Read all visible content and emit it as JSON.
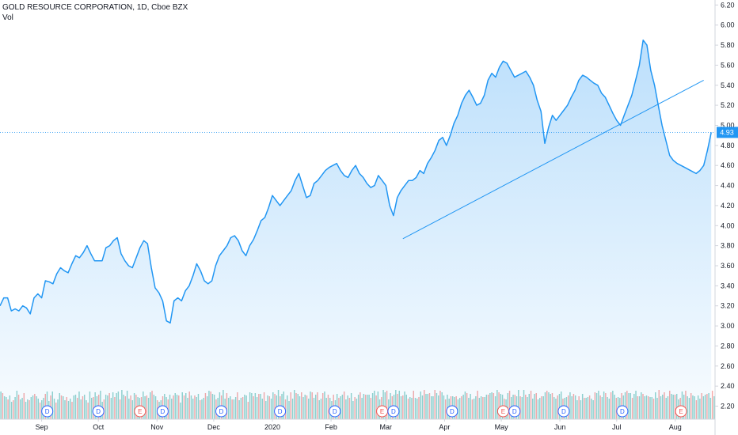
{
  "chart_data": {
    "type": "line",
    "title": "GOLD RESOURCE CORPORATION, 1D, Cboe BZX",
    "volume_label": "Vol",
    "last_price_label": "4.93",
    "y_ticks": [
      "2.20",
      "2.40",
      "2.60",
      "2.80",
      "3.00",
      "3.20",
      "3.40",
      "3.60",
      "3.80",
      "4.00",
      "4.20",
      "4.40",
      "4.60",
      "4.80",
      "5.00",
      "5.20",
      "5.40",
      "5.60",
      "5.80",
      "6.00",
      "6.20"
    ],
    "ylim": [
      2.07,
      6.25
    ],
    "x_ticks": [
      {
        "label": "Sep",
        "day": 22
      },
      {
        "label": "Oct",
        "day": 52
      },
      {
        "label": "Nov",
        "day": 83
      },
      {
        "label": "Dec",
        "day": 113
      },
      {
        "label": "2020",
        "day": 144
      },
      {
        "label": "Feb",
        "day": 175
      },
      {
        "label": "Mar",
        "day": 204
      },
      {
        "label": "Apr",
        "day": 235
      },
      {
        "label": "May",
        "day": 265
      },
      {
        "label": "Jun",
        "day": 296
      },
      {
        "label": "Jul",
        "day": 326
      },
      {
        "label": "Aug",
        "day": 357
      }
    ],
    "xlim": [
      0,
      378
    ],
    "price_points": [
      [
        0,
        3.2
      ],
      [
        2,
        3.28
      ],
      [
        4,
        3.28
      ],
      [
        6,
        3.15
      ],
      [
        8,
        3.17
      ],
      [
        10,
        3.15
      ],
      [
        12,
        3.2
      ],
      [
        14,
        3.18
      ],
      [
        16,
        3.12
      ],
      [
        18,
        3.28
      ],
      [
        20,
        3.32
      ],
      [
        22,
        3.28
      ],
      [
        24,
        3.45
      ],
      [
        26,
        3.44
      ],
      [
        28,
        3.42
      ],
      [
        30,
        3.52
      ],
      [
        32,
        3.58
      ],
      [
        34,
        3.55
      ],
      [
        36,
        3.53
      ],
      [
        38,
        3.62
      ],
      [
        40,
        3.7
      ],
      [
        42,
        3.68
      ],
      [
        44,
        3.73
      ],
      [
        46,
        3.8
      ],
      [
        48,
        3.72
      ],
      [
        50,
        3.65
      ],
      [
        52,
        3.65
      ],
      [
        54,
        3.65
      ],
      [
        56,
        3.78
      ],
      [
        58,
        3.8
      ],
      [
        60,
        3.85
      ],
      [
        62,
        3.88
      ],
      [
        64,
        3.72
      ],
      [
        66,
        3.65
      ],
      [
        68,
        3.6
      ],
      [
        70,
        3.58
      ],
      [
        72,
        3.68
      ],
      [
        74,
        3.78
      ],
      [
        76,
        3.85
      ],
      [
        78,
        3.82
      ],
      [
        80,
        3.58
      ],
      [
        82,
        3.38
      ],
      [
        84,
        3.33
      ],
      [
        86,
        3.25
      ],
      [
        88,
        3.05
      ],
      [
        90,
        3.03
      ],
      [
        92,
        3.25
      ],
      [
        94,
        3.28
      ],
      [
        96,
        3.25
      ],
      [
        98,
        3.35
      ],
      [
        100,
        3.4
      ],
      [
        102,
        3.5
      ],
      [
        104,
        3.62
      ],
      [
        106,
        3.55
      ],
      [
        108,
        3.45
      ],
      [
        110,
        3.42
      ],
      [
        112,
        3.45
      ],
      [
        114,
        3.6
      ],
      [
        116,
        3.7
      ],
      [
        118,
        3.75
      ],
      [
        120,
        3.8
      ],
      [
        122,
        3.88
      ],
      [
        124,
        3.9
      ],
      [
        126,
        3.85
      ],
      [
        128,
        3.75
      ],
      [
        130,
        3.7
      ],
      [
        132,
        3.8
      ],
      [
        134,
        3.86
      ],
      [
        136,
        3.95
      ],
      [
        138,
        4.05
      ],
      [
        140,
        4.08
      ],
      [
        142,
        4.18
      ],
      [
        144,
        4.3
      ],
      [
        146,
        4.25
      ],
      [
        148,
        4.2
      ],
      [
        150,
        4.25
      ],
      [
        152,
        4.3
      ],
      [
        154,
        4.35
      ],
      [
        156,
        4.45
      ],
      [
        158,
        4.52
      ],
      [
        160,
        4.4
      ],
      [
        162,
        4.28
      ],
      [
        164,
        4.3
      ],
      [
        166,
        4.42
      ],
      [
        168,
        4.45
      ],
      [
        170,
        4.5
      ],
      [
        172,
        4.55
      ],
      [
        174,
        4.58
      ],
      [
        176,
        4.6
      ],
      [
        178,
        4.62
      ],
      [
        180,
        4.55
      ],
      [
        182,
        4.5
      ],
      [
        184,
        4.48
      ],
      [
        186,
        4.55
      ],
      [
        188,
        4.6
      ],
      [
        190,
        4.52
      ],
      [
        192,
        4.48
      ],
      [
        194,
        4.42
      ],
      [
        196,
        4.38
      ],
      [
        198,
        4.4
      ],
      [
        200,
        4.5
      ],
      [
        202,
        4.45
      ],
      [
        204,
        4.4
      ],
      [
        206,
        4.2
      ],
      [
        208,
        4.1
      ],
      [
        210,
        4.28
      ],
      [
        212,
        4.35
      ],
      [
        214,
        4.4
      ],
      [
        216,
        4.45
      ],
      [
        218,
        4.45
      ],
      [
        220,
        4.48
      ],
      [
        222,
        4.55
      ],
      [
        224,
        4.52
      ],
      [
        226,
        4.62
      ],
      [
        228,
        4.68
      ],
      [
        230,
        4.75
      ],
      [
        232,
        4.85
      ],
      [
        234,
        4.88
      ],
      [
        236,
        4.8
      ],
      [
        238,
        4.9
      ],
      [
        240,
        5.02
      ],
      [
        242,
        5.1
      ],
      [
        244,
        5.22
      ],
      [
        246,
        5.3
      ],
      [
        248,
        5.35
      ],
      [
        250,
        5.28
      ],
      [
        252,
        5.2
      ],
      [
        254,
        5.22
      ],
      [
        256,
        5.3
      ],
      [
        258,
        5.45
      ],
      [
        260,
        5.52
      ],
      [
        262,
        5.48
      ],
      [
        264,
        5.58
      ],
      [
        266,
        5.64
      ],
      [
        268,
        5.62
      ],
      [
        270,
        5.55
      ],
      [
        272,
        5.48
      ],
      [
        274,
        5.5
      ],
      [
        276,
        5.52
      ],
      [
        278,
        5.54
      ],
      [
        280,
        5.48
      ],
      [
        282,
        5.4
      ],
      [
        284,
        5.25
      ],
      [
        286,
        5.14
      ],
      [
        288,
        4.82
      ],
      [
        290,
        4.98
      ],
      [
        292,
        5.1
      ],
      [
        294,
        5.05
      ],
      [
        296,
        5.1
      ],
      [
        298,
        5.15
      ],
      [
        300,
        5.2
      ],
      [
        302,
        5.28
      ],
      [
        304,
        5.35
      ],
      [
        306,
        5.45
      ],
      [
        308,
        5.5
      ],
      [
        310,
        5.48
      ],
      [
        312,
        5.45
      ],
      [
        314,
        5.42
      ],
      [
        316,
        5.4
      ],
      [
        318,
        5.32
      ],
      [
        320,
        5.28
      ],
      [
        322,
        5.2
      ],
      [
        324,
        5.12
      ],
      [
        326,
        5.05
      ],
      [
        328,
        5.0
      ],
      [
        330,
        5.1
      ],
      [
        332,
        5.2
      ],
      [
        334,
        5.3
      ],
      [
        336,
        5.45
      ],
      [
        338,
        5.6
      ],
      [
        340,
        5.85
      ],
      [
        342,
        5.8
      ],
      [
        344,
        5.55
      ],
      [
        346,
        5.4
      ],
      [
        348,
        5.2
      ],
      [
        350,
        5.0
      ],
      [
        352,
        4.85
      ],
      [
        354,
        4.7
      ],
      [
        356,
        4.65
      ],
      [
        358,
        4.62
      ],
      [
        360,
        4.6
      ],
      [
        362,
        4.58
      ],
      [
        364,
        4.56
      ],
      [
        366,
        4.54
      ],
      [
        368,
        4.52
      ],
      [
        370,
        4.55
      ],
      [
        372,
        4.6
      ],
      [
        374,
        4.75
      ],
      [
        376,
        4.93
      ]
    ],
    "trendline": {
      "from": [
        213,
        3.87
      ],
      "to": [
        372,
        5.45
      ]
    },
    "annotations": [
      {
        "label": "D",
        "day": 25,
        "color": "#2962ff"
      },
      {
        "label": "D",
        "day": 52,
        "color": "#2962ff"
      },
      {
        "label": "E",
        "day": 74,
        "color": "#ef5350"
      },
      {
        "label": "D",
        "day": 86,
        "color": "#2962ff"
      },
      {
        "label": "D",
        "day": 117,
        "color": "#2962ff"
      },
      {
        "label": "D",
        "day": 148,
        "color": "#2962ff"
      },
      {
        "label": "D",
        "day": 177,
        "color": "#2962ff"
      },
      {
        "label": "E",
        "day": 202,
        "color": "#ef5350"
      },
      {
        "label": "D",
        "day": 208,
        "color": "#2962ff"
      },
      {
        "label": "D",
        "day": 239,
        "color": "#2962ff"
      },
      {
        "label": "E",
        "day": 266,
        "color": "#ef5350"
      },
      {
        "label": "D",
        "day": 272,
        "color": "#2962ff"
      },
      {
        "label": "D",
        "day": 298,
        "color": "#2962ff"
      },
      {
        "label": "D",
        "day": 329,
        "color": "#2962ff"
      },
      {
        "label": "E",
        "day": 360,
        "color": "#ef5350"
      }
    ],
    "volumes": [
      35,
      33,
      29,
      28,
      25,
      30,
      22,
      24,
      28,
      36,
      31,
      25,
      27,
      33,
      22,
      25,
      24,
      28,
      30,
      32,
      29,
      26,
      21,
      24,
      27,
      32,
      35,
      23,
      30,
      35,
      26,
      21,
      25,
      33,
      30,
      29,
      24,
      28,
      23,
      26,
      22,
      30,
      31,
      27,
      35,
      25,
      29,
      31,
      24,
      21,
      35,
      27,
      28,
      34,
      29,
      31,
      36,
      22,
      25,
      31,
      30,
      33,
      27,
      34,
      28,
      33,
      35,
      25,
      37,
      31,
      29,
      36,
      26,
      30,
      24,
      33,
      31,
      28,
      27,
      28,
      35,
      29,
      30,
      27,
      34,
      36,
      31,
      29,
      24,
      22,
      24,
      29,
      32,
      28,
      25,
      31,
      26,
      30,
      33,
      31,
      30,
      21,
      34,
      30,
      33,
      27,
      35,
      30,
      26,
      30,
      28,
      32,
      24,
      25,
      27,
      33,
      29,
      36,
      35,
      32,
      31,
      25,
      27,
      34,
      30,
      37,
      26,
      33,
      27,
      29,
      25,
      25,
      28,
      34,
      24,
      27,
      28,
      31,
      30,
      22,
      34,
      33,
      29,
      33,
      28,
      32,
      32,
      26,
      34,
      23,
      30,
      29,
      26,
      34,
      32,
      30,
      37,
      29,
      32,
      35,
      25,
      30,
      23,
      34,
      26,
      37,
      33,
      32,
      29,
      34,
      28,
      31,
      30,
      26,
      35,
      34,
      27,
      31,
      34,
      24,
      26,
      33,
      35,
      27,
      31,
      27,
      23,
      31,
      24,
      32,
      27,
      29,
      31,
      35,
      25,
      30,
      27,
      33,
      23,
      28,
      26,
      31,
      34,
      27,
      32,
      31,
      31,
      31,
      27,
      33,
      36,
      30,
      35,
      25,
      28,
      37,
      34,
      36,
      25,
      33,
      29,
      31,
      37,
      32,
      36,
      29,
      30,
      35,
      31,
      26,
      28,
      27,
      36,
      27,
      26,
      28,
      35,
      30,
      37,
      32,
      32,
      33,
      29,
      29,
      37,
      33,
      30,
      36,
      34,
      30,
      25,
      31,
      26,
      29,
      29,
      28,
      29,
      25,
      27,
      29,
      31,
      35,
      33,
      27,
      32,
      25,
      26,
      29,
      36,
      27,
      29,
      28,
      28,
      31,
      31,
      33,
      34,
      33,
      29,
      37,
      34,
      32,
      31,
      26,
      25,
      33,
      36,
      28,
      31,
      31,
      29,
      37,
      29,
      28,
      37,
      31,
      28,
      32,
      36,
      26,
      32,
      33,
      25,
      27,
      29,
      29,
      34,
      36,
      34,
      32,
      33,
      28,
      26,
      30,
      32,
      35,
      26,
      27,
      28,
      30,
      34,
      29,
      32,
      30,
      24,
      29,
      24,
      32,
      27,
      27,
      28,
      30,
      26,
      24,
      34,
      33,
      36,
      30,
      28,
      35,
      33,
      28,
      26,
      34,
      36,
      31,
      27,
      28,
      27,
      33,
      30,
      34,
      36,
      33,
      33,
      27,
      32,
      36,
      29,
      29,
      34,
      32,
      29,
      30,
      29,
      28,
      28,
      26,
      34,
      27,
      37,
      29,
      31,
      34,
      27,
      29,
      36,
      32,
      31,
      31,
      32,
      25,
      27,
      35,
      31,
      36,
      29,
      27,
      33,
      30,
      29,
      24,
      30,
      26,
      33,
      29,
      31,
      32,
      33,
      27,
      36,
      29
    ]
  }
}
